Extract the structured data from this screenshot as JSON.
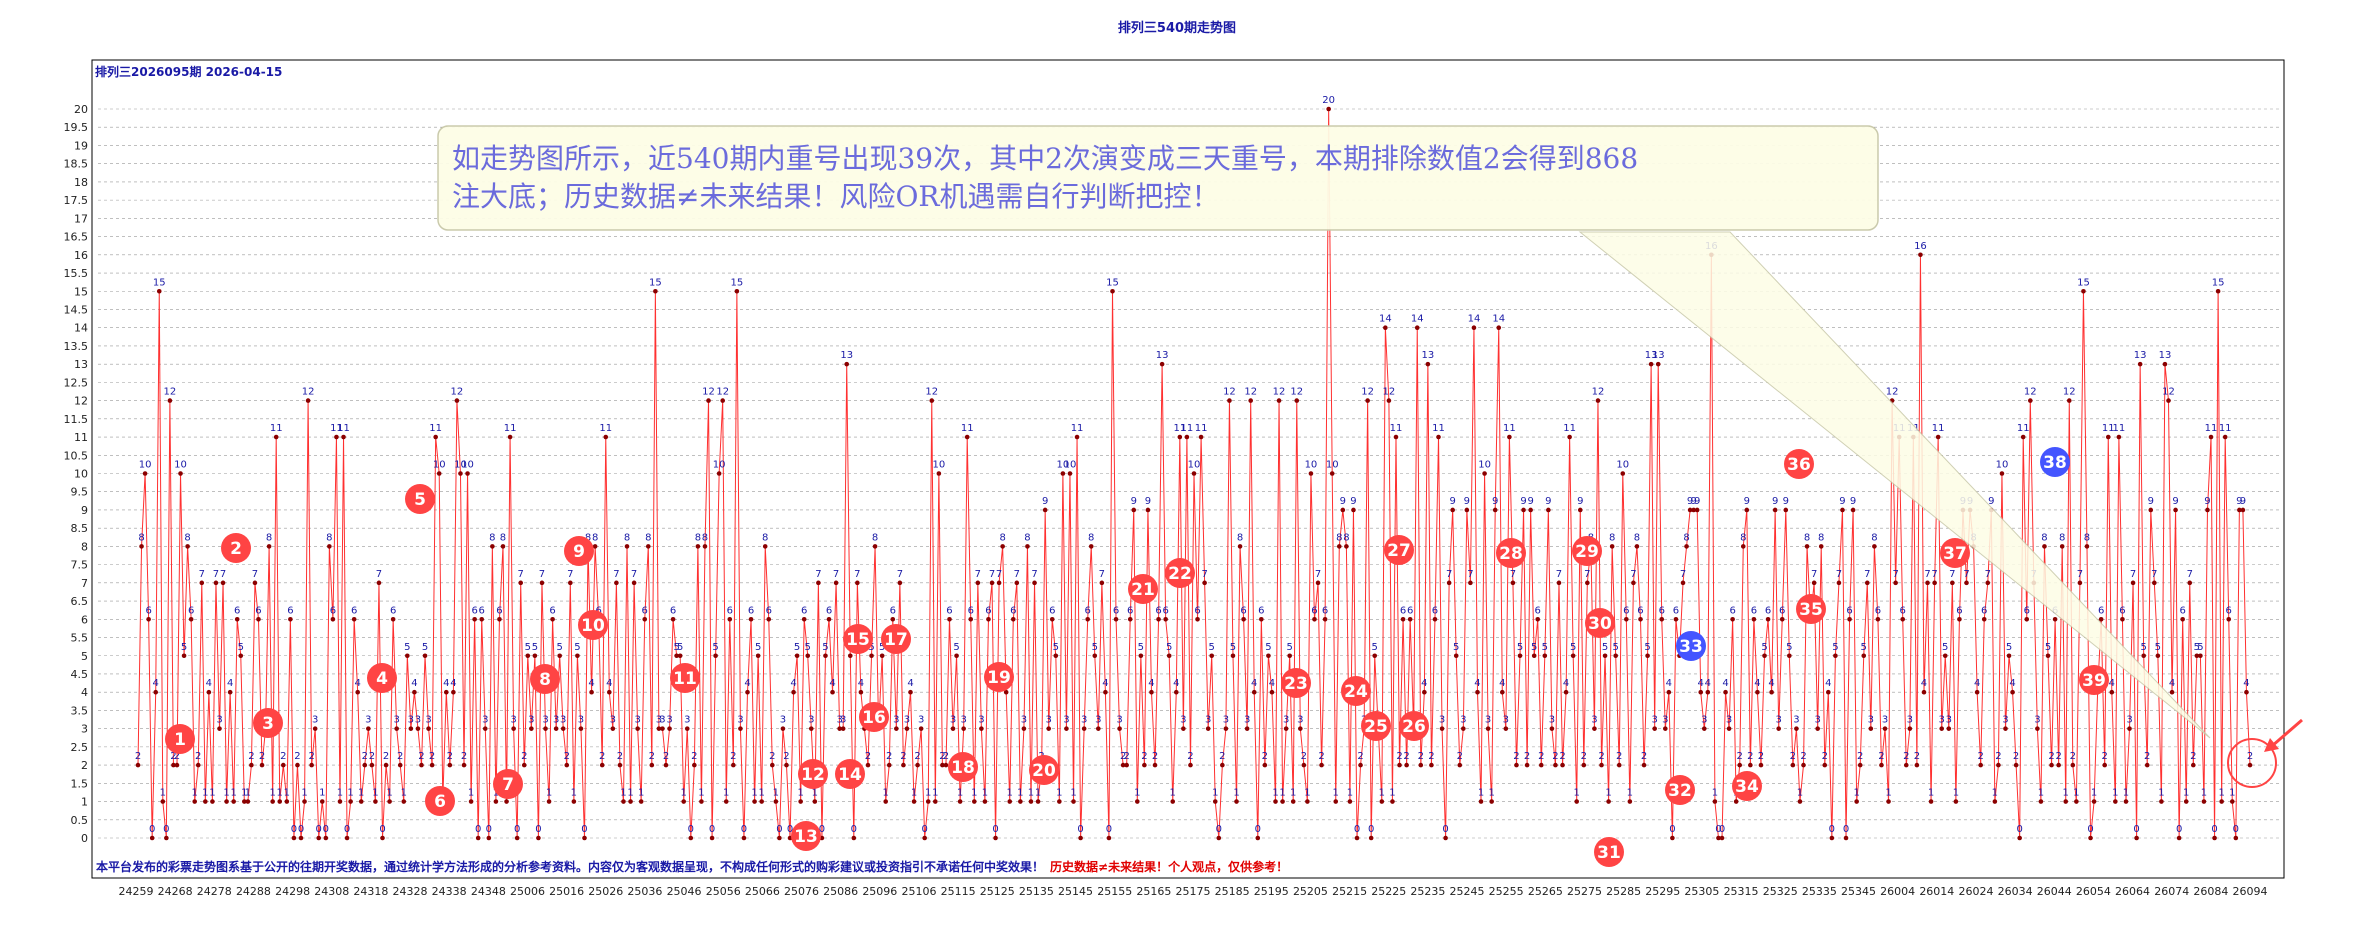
{
  "header": {
    "title": "排列三540期走势图",
    "subtitle": "排列三2026095期   2026-04-15"
  },
  "callout": {
    "line1": "如走势图所示，近540期内重号出现39次，其中2次演变成三天重号，本期排除数值2会得到868",
    "line2": "注大底；历史数据≠未来结果！风险OR机遇需自行判断把控！"
  },
  "footer": {
    "blue_text": "本平台发布的彩票走势图系基于公开的往期开奖数据，通过统计学方法形成的分析参考资料。内容仅为客观数据呈现，不构成任何形式的购彩建议或投资指引不承诺任何中奖效果！",
    "red_text": "历史数据≠未来结果！个人观点，仅供参考！"
  },
  "colors": {
    "line": "#ff3030",
    "point": "#8b0000",
    "badge_red": "#ff4444",
    "badge_blue": "#4455ff",
    "callout_fill": "#fdfde6",
    "callout_text": "#6b6bdc",
    "axis_text": "#1a1aa6",
    "grid": "#999999"
  },
  "chart_data": {
    "type": "line",
    "title": "排列三540期走势图",
    "ylim": [
      0,
      20
    ],
    "ytick_step": 0.5,
    "grid": true,
    "x_tick_labels": [
      "24259",
      "24268",
      "24278",
      "24288",
      "24298",
      "24308",
      "24318",
      "24328",
      "24338",
      "24348",
      "25006",
      "25016",
      "25026",
      "25036",
      "25046",
      "25056",
      "25066",
      "25076",
      "25086",
      "25096",
      "25106",
      "25115",
      "25125",
      "25135",
      "25145",
      "25155",
      "25165",
      "25175",
      "25185",
      "25195",
      "25205",
      "25215",
      "25225",
      "25235",
      "25245",
      "25255",
      "25265",
      "25275",
      "25285",
      "25295",
      "25305",
      "25315",
      "25325",
      "25335",
      "25345",
      "26004",
      "26014",
      "26024",
      "26034",
      "26044",
      "26054",
      "26064",
      "26074",
      "26084",
      "26094"
    ],
    "series": [
      {
        "values": [
          2,
          8,
          10,
          6,
          0,
          4,
          15,
          1,
          0,
          12,
          2,
          2,
          10,
          5,
          8,
          6,
          1,
          2,
          7,
          1,
          4,
          1,
          7,
          3,
          7,
          1,
          4,
          1,
          6,
          5,
          1,
          1,
          2,
          7,
          6,
          2,
          3,
          8,
          1,
          11,
          1,
          2,
          1,
          6,
          0,
          2,
          0,
          1,
          12,
          2,
          3,
          0,
          1,
          0,
          8,
          6,
          11,
          1,
          11,
          0,
          1,
          6,
          4,
          1,
          2,
          3,
          2,
          1,
          7,
          0,
          2,
          1,
          6,
          3,
          2,
          1,
          5,
          3,
          4,
          3,
          2,
          5,
          3,
          2,
          11,
          10,
          1,
          4,
          2,
          4,
          12,
          10,
          2,
          10,
          1,
          6,
          0,
          6,
          3,
          0,
          8,
          1,
          6,
          8,
          1,
          11,
          3,
          0,
          7,
          2,
          5,
          3,
          5,
          0,
          7,
          3,
          1,
          6,
          3,
          5,
          3,
          2,
          7,
          1,
          5,
          3,
          0,
          8,
          4,
          8,
          6,
          2,
          11,
          4,
          3,
          7,
          2,
          1,
          8,
          1,
          7,
          3,
          1,
          6,
          8,
          2,
          15,
          3,
          3,
          2,
          3,
          6,
          5,
          5,
          1,
          3,
          0,
          2,
          8,
          1,
          8,
          12,
          0,
          5,
          10,
          12,
          1,
          6,
          2,
          15,
          3,
          0,
          4,
          6,
          1,
          5,
          1,
          8,
          6,
          2,
          1,
          0,
          3,
          2,
          0,
          4,
          5,
          1,
          6,
          5,
          3,
          1,
          7,
          0,
          5,
          6,
          4,
          7,
          3,
          3,
          13,
          5,
          0,
          7,
          4,
          3,
          2,
          5,
          8,
          3,
          5,
          1,
          2,
          6,
          3,
          7,
          2,
          3,
          4,
          1,
          2,
          3,
          0,
          1,
          12,
          1,
          10,
          2,
          2,
          6,
          3,
          5,
          1,
          3,
          11,
          6,
          1,
          7,
          3,
          1,
          6,
          7,
          0,
          7,
          8,
          4,
          1,
          6,
          7,
          1,
          3,
          8,
          1,
          7,
          1,
          2,
          9,
          3,
          6,
          5,
          1,
          10,
          3,
          10,
          1,
          11,
          0,
          3,
          6,
          8,
          5,
          3,
          7,
          4,
          0,
          15,
          6,
          3,
          2,
          2,
          6,
          9,
          1,
          5,
          2,
          9,
          4,
          2,
          6,
          13,
          6,
          5,
          1,
          4,
          11,
          3,
          11,
          2,
          10,
          6,
          11,
          7,
          3,
          5,
          1,
          0,
          2,
          3,
          12,
          5,
          1,
          8,
          6,
          3,
          12,
          4,
          0,
          6,
          2,
          5,
          4,
          1,
          12,
          1,
          3,
          5,
          1,
          12,
          3,
          2,
          1,
          10,
          6,
          7,
          2,
          6,
          20,
          10,
          1,
          8,
          9,
          8,
          1,
          9,
          0,
          2,
          3,
          12,
          0,
          5,
          3,
          1,
          14,
          12,
          1,
          11,
          2,
          6,
          2,
          6,
          3,
          14,
          2,
          4,
          13,
          2,
          6,
          11,
          3,
          0,
          7,
          9,
          5,
          2,
          3,
          9,
          7,
          14,
          4,
          1,
          10,
          3,
          1,
          9,
          14,
          4,
          3,
          11,
          7,
          2,
          5,
          9,
          2,
          9,
          5,
          6,
          2,
          5,
          9,
          3,
          2,
          7,
          2,
          4,
          11,
          5,
          1,
          9,
          2,
          7,
          8,
          3,
          12,
          2,
          5,
          1,
          8,
          5,
          2,
          10,
          6,
          1,
          7,
          8,
          6,
          2,
          5,
          13,
          3,
          13,
          6,
          3,
          4,
          0,
          6,
          5,
          7,
          8,
          9,
          9,
          9,
          4,
          3,
          4,
          16,
          1,
          0,
          0,
          4,
          3,
          6,
          1,
          2,
          8,
          9,
          2,
          6,
          4,
          2,
          5,
          6,
          4,
          9,
          3,
          6,
          9,
          5,
          2,
          3,
          1,
          2,
          8,
          6,
          7,
          3,
          8,
          2,
          4,
          0,
          5,
          7,
          9,
          0,
          6,
          9,
          1,
          2,
          5,
          7,
          3,
          8,
          6,
          2,
          3,
          1,
          12,
          7,
          11,
          6,
          2,
          3,
          11,
          2,
          16,
          4,
          7,
          1,
          7,
          11,
          3,
          5,
          3,
          7,
          1,
          6,
          9,
          7,
          9,
          8,
          4,
          2,
          6,
          7,
          9,
          1,
          2,
          10,
          3,
          5,
          4,
          2,
          0,
          11,
          6,
          12,
          7,
          3,
          1,
          8,
          5,
          2,
          6,
          2,
          8,
          1,
          12,
          2,
          1,
          7,
          15,
          8,
          0,
          1,
          4,
          6,
          2,
          11,
          4,
          1,
          11,
          6,
          1,
          3,
          7,
          0,
          13,
          5,
          2,
          9,
          7,
          5,
          1,
          13,
          12,
          4,
          9,
          0,
          6,
          1,
          7,
          2,
          5,
          5,
          1,
          9,
          11,
          0,
          15,
          1,
          11,
          6,
          1,
          0,
          9,
          9,
          4,
          2
        ]
      }
    ],
    "repeat_markers": [
      {
        "n": 1,
        "type": "red"
      },
      {
        "n": 2,
        "type": "red"
      },
      {
        "n": 3,
        "type": "red"
      },
      {
        "n": 4,
        "type": "red"
      },
      {
        "n": 5,
        "type": "red"
      },
      {
        "n": 6,
        "type": "red"
      },
      {
        "n": 7,
        "type": "red"
      },
      {
        "n": 8,
        "type": "red"
      },
      {
        "n": 9,
        "type": "red"
      },
      {
        "n": 10,
        "type": "red"
      },
      {
        "n": 11,
        "type": "red"
      },
      {
        "n": 12,
        "type": "red"
      },
      {
        "n": 13,
        "type": "red"
      },
      {
        "n": 14,
        "type": "red"
      },
      {
        "n": 15,
        "type": "red"
      },
      {
        "n": 16,
        "type": "red"
      },
      {
        "n": 17,
        "type": "red"
      },
      {
        "n": 18,
        "type": "red"
      },
      {
        "n": 19,
        "type": "red"
      },
      {
        "n": 20,
        "type": "red"
      },
      {
        "n": 21,
        "type": "red"
      },
      {
        "n": 22,
        "type": "red"
      },
      {
        "n": 23,
        "type": "red"
      },
      {
        "n": 24,
        "type": "red"
      },
      {
        "n": 25,
        "type": "red"
      },
      {
        "n": 26,
        "type": "red"
      },
      {
        "n": 27,
        "type": "red"
      },
      {
        "n": 28,
        "type": "red"
      },
      {
        "n": 29,
        "type": "red"
      },
      {
        "n": 30,
        "type": "red"
      },
      {
        "n": 31,
        "type": "red"
      },
      {
        "n": 32,
        "type": "red"
      },
      {
        "n": 33,
        "type": "blue"
      },
      {
        "n": 34,
        "type": "red"
      },
      {
        "n": 35,
        "type": "red"
      },
      {
        "n": 36,
        "type": "red"
      },
      {
        "n": 37,
        "type": "red"
      },
      {
        "n": 38,
        "type": "blue"
      },
      {
        "n": 39,
        "type": "red"
      }
    ]
  }
}
